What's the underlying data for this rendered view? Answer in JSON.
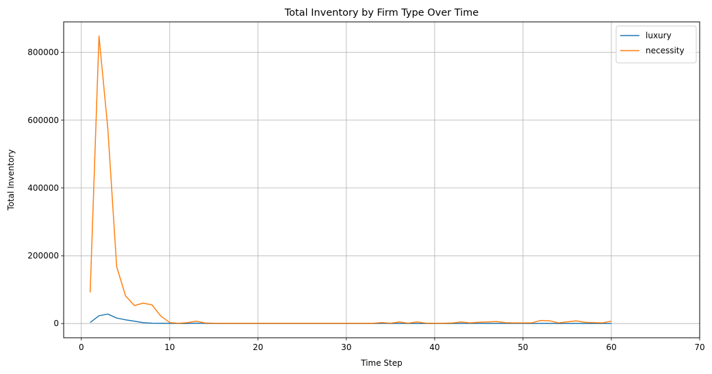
{
  "chart_data": {
    "type": "line",
    "title": "Total Inventory by Firm Type Over Time",
    "xlabel": "Time Step",
    "ylabel": "Total Inventory",
    "xlim": [
      -2,
      70
    ],
    "ylim": [
      -42000,
      890000
    ],
    "xticks": [
      0,
      10,
      20,
      30,
      40,
      50,
      60,
      70
    ],
    "yticks": [
      0,
      200000,
      400000,
      600000,
      800000
    ],
    "grid": true,
    "legend_position": "top-right",
    "x": [
      1,
      2,
      3,
      4,
      5,
      6,
      7,
      8,
      9,
      10,
      11,
      12,
      13,
      14,
      15,
      16,
      17,
      18,
      19,
      20,
      21,
      22,
      23,
      24,
      25,
      26,
      27,
      28,
      29,
      30,
      31,
      32,
      33,
      34,
      35,
      36,
      37,
      38,
      39,
      40,
      41,
      42,
      43,
      44,
      45,
      46,
      47,
      48,
      49,
      50,
      51,
      52,
      53,
      54,
      55,
      56,
      57,
      58,
      59,
      60
    ],
    "series": [
      {
        "name": "luxury",
        "color": "#1f77b4",
        "values": [
          3000,
          23000,
          28000,
          16000,
          11000,
          7000,
          2500,
          1000,
          500,
          300,
          200,
          200,
          1200,
          300,
          200,
          100,
          100,
          100,
          100,
          100,
          100,
          100,
          100,
          100,
          100,
          100,
          100,
          100,
          100,
          100,
          100,
          100,
          100,
          300,
          200,
          300,
          200,
          200,
          200,
          200,
          200,
          200,
          300,
          300,
          300,
          300,
          300,
          300,
          300,
          300,
          200,
          300,
          300,
          200,
          200,
          300,
          200,
          200,
          200,
          200
        ]
      },
      {
        "name": "necessity",
        "color": "#ff7f0e",
        "values": [
          92000,
          848000,
          575000,
          168000,
          82000,
          53000,
          60000,
          55000,
          22000,
          3000,
          500,
          2500,
          7000,
          1500,
          800,
          500,
          500,
          500,
          500,
          500,
          500,
          500,
          500,
          500,
          500,
          500,
          500,
          500,
          500,
          500,
          500,
          500,
          500,
          3000,
          800,
          4500,
          800,
          4500,
          1200,
          1000,
          1000,
          1500,
          4500,
          2000,
          4000,
          4500,
          6000,
          2500,
          2000,
          2000,
          2000,
          9000,
          8000,
          2000,
          5000,
          8000,
          3500,
          2500,
          2000,
          7000
        ]
      }
    ]
  }
}
